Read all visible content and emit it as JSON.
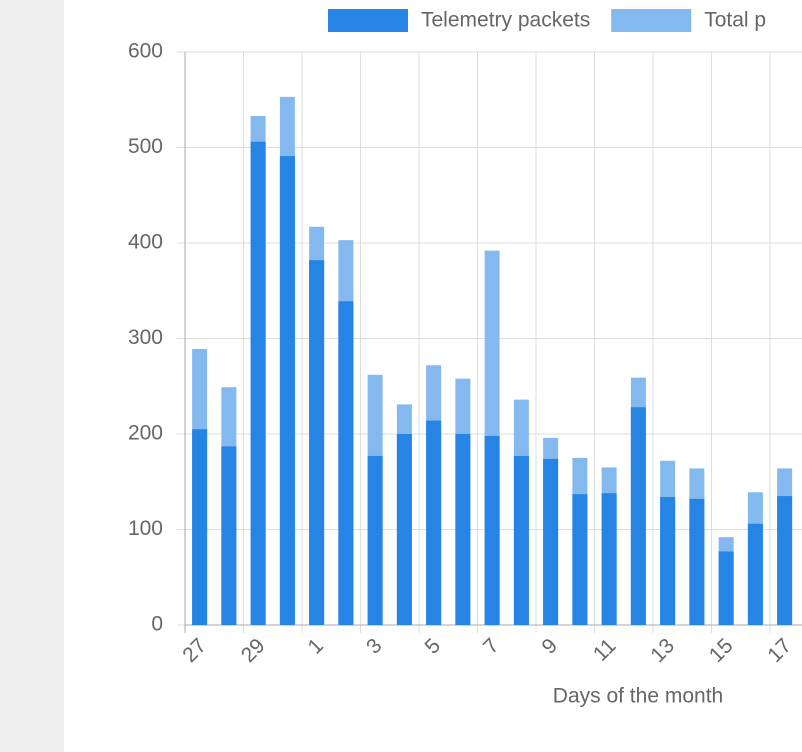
{
  "chart_data": {
    "type": "bar",
    "x_label": "Days of the month",
    "categories": [
      "27",
      null,
      "29",
      null,
      "1",
      null,
      "3",
      null,
      "5",
      null,
      "7",
      null,
      "9",
      null,
      "11",
      null,
      "13",
      null,
      "15",
      null,
      "17"
    ],
    "series": [
      {
        "name": "Telemetry packets",
        "color": "#2584e4",
        "values": [
          205,
          187,
          506,
          491,
          382,
          339,
          177,
          200,
          214,
          200,
          198,
          177,
          174,
          137,
          138,
          228,
          134,
          132,
          77,
          106,
          135
        ]
      },
      {
        "name": "Total p",
        "color": "#84b9f0",
        "values": [
          289,
          249,
          533,
          553,
          417,
          403,
          262,
          231,
          272,
          258,
          392,
          236,
          196,
          175,
          165,
          259,
          172,
          164,
          92,
          139,
          164
        ]
      }
    ],
    "ylim": [
      0,
      600
    ],
    "yticks": [
      0,
      100,
      200,
      300,
      400,
      500,
      600
    ],
    "grid": true
  }
}
